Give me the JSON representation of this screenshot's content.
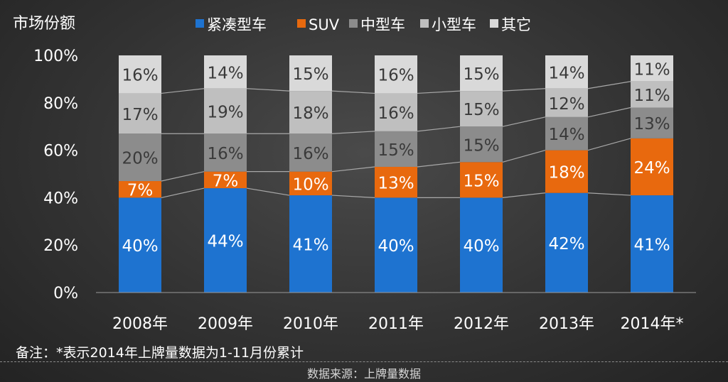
{
  "chart_data": {
    "type": "bar",
    "stacked": true,
    "percent_stacked": true,
    "ylabel": "市场份额",
    "ylim": [
      0,
      100
    ],
    "yticks": [
      "0%",
      "20%",
      "40%",
      "60%",
      "80%",
      "100%"
    ],
    "categories": [
      "2008年",
      "2009年",
      "2010年",
      "2011年",
      "2012年",
      "2013年",
      "2014年*"
    ],
    "series": [
      {
        "name": "紧凑型车",
        "color": "#1E73D0",
        "values": [
          40,
          44,
          41,
          40,
          40,
          42,
          41
        ]
      },
      {
        "name": "SUV",
        "color": "#E8690E",
        "values": [
          7,
          7,
          10,
          13,
          15,
          18,
          24
        ]
      },
      {
        "name": "中型车",
        "color": "#8C8C8C",
        "values": [
          20,
          16,
          16,
          15,
          15,
          14,
          13
        ]
      },
      {
        "name": "小型车",
        "color": "#BFBFBF",
        "values": [
          17,
          19,
          18,
          16,
          15,
          12,
          11
        ]
      },
      {
        "name": "其它",
        "color": "#D9D9D9",
        "values": [
          16,
          14,
          15,
          16,
          15,
          14,
          11
        ]
      }
    ],
    "label_suffix": "%",
    "legend_position": "top",
    "grid": false,
    "connector_lines": true
  },
  "footnote": "备注：*表示2014年上牌量数据为1-11月份累计",
  "source": "数据来源：上牌量数据"
}
